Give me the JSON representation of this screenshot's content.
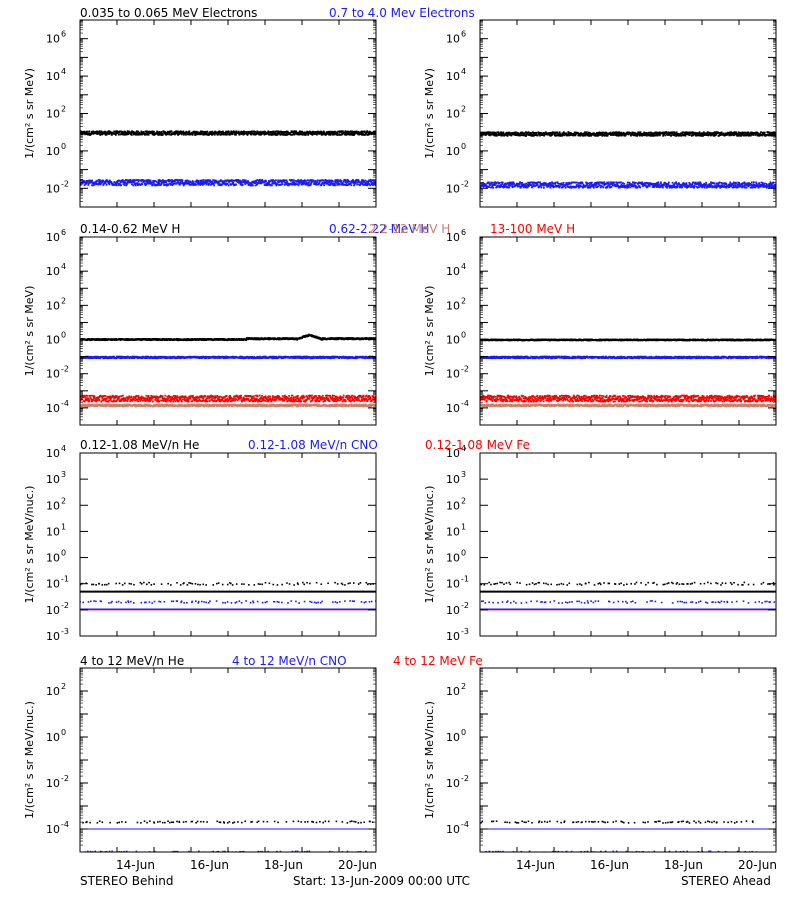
{
  "footer": {
    "left": "STEREO Behind",
    "center": "Start: 13-Jun-2009 00:00 UTC",
    "right": "STEREO Ahead"
  },
  "colors": {
    "black": "#000000",
    "blue": "#1a1aff",
    "tan": "#c8826e",
    "red": "#ff0000"
  },
  "chart_data": [
    {
      "type": "scatter",
      "row": 1,
      "legend": [
        {
          "text": "0.035 to 0.065 MeV Electrons",
          "color": "#000000"
        },
        {
          "text": "0.7 to 4.0 Mev Electrons",
          "color": "#1a1aff"
        }
      ],
      "ylabel": "1/(cm² s sr MeV)",
      "yscale": "log",
      "ylim_log10": [
        -3,
        7
      ],
      "yticks": [
        {
          "exp": -2,
          "label": "10",
          "sup": "-2"
        },
        {
          "exp": 0,
          "label": "10",
          "sup": "0"
        },
        {
          "exp": 2,
          "label": "10",
          "sup": "2"
        },
        {
          "exp": 4,
          "label": "10",
          "sup": "4"
        },
        {
          "exp": 6,
          "label": "10",
          "sup": "6"
        }
      ],
      "xticks": [
        "14-Jun",
        "16-Jun",
        "18-Jun",
        "20-Jun"
      ],
      "panels": [
        {
          "name": "STEREO Behind",
          "series": [
            {
              "name": "0.035 to 0.065 MeV Electrons",
              "color": "#000000",
              "level": 9,
              "spread": 0.1
            },
            {
              "name": "0.7 to 4.0 Mev Electrons",
              "color": "#1a1aff",
              "level": 0.02,
              "spread": 0.15
            }
          ]
        },
        {
          "name": "STEREO Ahead",
          "series": [
            {
              "name": "0.035 to 0.065 MeV Electrons",
              "color": "#000000",
              "level": 8,
              "spread": 0.1
            },
            {
              "name": "0.7 to 4.0 Mev Electrons",
              "color": "#1a1aff",
              "level": 0.015,
              "spread": 0.15
            }
          ]
        }
      ]
    },
    {
      "type": "scatter",
      "row": 2,
      "legend": [
        {
          "text": "0.14-0.62 MeV H",
          "color": "#000000"
        },
        {
          "text": "0.62-2.22 MeV H",
          "color": "#1a1aff"
        },
        {
          "text": "2.2-12 MeV H",
          "color": "#c8826e"
        },
        {
          "text": "13-100 MeV H",
          "color": "#ff0000"
        }
      ],
      "ylabel": "1/(cm² s sr MeV)",
      "yscale": "log",
      "ylim_log10": [
        -5,
        6
      ],
      "yticks": [
        {
          "exp": -4,
          "label": "10",
          "sup": "-4"
        },
        {
          "exp": -2,
          "label": "10",
          "sup": "-2"
        },
        {
          "exp": 0,
          "label": "10",
          "sup": "0"
        },
        {
          "exp": 2,
          "label": "10",
          "sup": "2"
        },
        {
          "exp": 4,
          "label": "10",
          "sup": "4"
        },
        {
          "exp": 6,
          "label": "10",
          "sup": "6"
        }
      ],
      "xticks": [
        "14-Jun",
        "16-Jun",
        "18-Jun",
        "20-Jun"
      ],
      "panels": [
        {
          "name": "STEREO Behind",
          "series": [
            {
              "name": "0.14-0.62 MeV H",
              "color": "#000000",
              "level": 1.0,
              "spread": 0.04,
              "bump": {
                "day": 6.2,
                "peak": 1.8
              }
            },
            {
              "name": "0.62-2.22 MeV H",
              "color": "#1a1aff",
              "level": 0.09,
              "spread": 0.05
            },
            {
              "name": "13-100 MeV H",
              "color": "#ff0000",
              "level": 0.00035,
              "spread": 0.18
            },
            {
              "name": "2.2-12 MeV H",
              "color": "#c8826e",
              "level": 0.00014,
              "spread": 0.06
            }
          ]
        },
        {
          "name": "STEREO Ahead",
          "series": [
            {
              "name": "0.14-0.62 MeV H",
              "color": "#000000",
              "level": 0.95,
              "spread": 0.03
            },
            {
              "name": "0.62-2.22 MeV H",
              "color": "#1a1aff",
              "level": 0.09,
              "spread": 0.05
            },
            {
              "name": "13-100 MeV H",
              "color": "#ff0000",
              "level": 0.00035,
              "spread": 0.18
            },
            {
              "name": "2.2-12 MeV H",
              "color": "#c8826e",
              "level": 0.00014,
              "spread": 0.06
            }
          ]
        }
      ]
    },
    {
      "type": "scatter",
      "row": 3,
      "legend": [
        {
          "text": "0.12-1.08 MeV/n He",
          "color": "#000000"
        },
        {
          "text": "0.12-1.08 MeV/n CNO",
          "color": "#1a1aff"
        },
        {
          "text": "0.12-1.08 MeV Fe",
          "color": "#ff0000"
        }
      ],
      "ylabel": "1/(cm² s sr MeV/nuc.)",
      "yscale": "log",
      "ylim_log10": [
        -3,
        4
      ],
      "yticks": [
        {
          "exp": -3,
          "label": "10",
          "sup": "-3"
        },
        {
          "exp": -2,
          "label": "10",
          "sup": "-2"
        },
        {
          "exp": -1,
          "label": "10",
          "sup": "-1"
        },
        {
          "exp": 0,
          "label": "10",
          "sup": "0"
        },
        {
          "exp": 1,
          "label": "10",
          "sup": "1"
        },
        {
          "exp": 2,
          "label": "10",
          "sup": "2"
        },
        {
          "exp": 3,
          "label": "10",
          "sup": "3"
        },
        {
          "exp": 4,
          "label": "10",
          "sup": "4"
        }
      ],
      "xticks": [
        "14-Jun",
        "16-Jun",
        "18-Jun",
        "20-Jun"
      ],
      "panels": [
        {
          "name": "STEREO Behind",
          "lines": [
            {
              "color": "#000000",
              "level": 0.05,
              "width": 2
            },
            {
              "color": "#1a1aff",
              "level": 0.0105,
              "width": 1.5
            },
            {
              "color": "#ff0000",
              "level": 0.01,
              "width": 1
            }
          ],
          "series": [
            {
              "name": "0.12-1.08 MeV/n He",
              "color": "#000000",
              "level": 0.1,
              "spread": 0.05,
              "sparse": true
            },
            {
              "name": "0.12-1.08 MeV/n CNO",
              "color": "#1a1aff",
              "level": 0.02,
              "spread": 0.04,
              "sparse": true
            }
          ]
        },
        {
          "name": "STEREO Ahead",
          "lines": [
            {
              "color": "#000000",
              "level": 0.05,
              "width": 2
            },
            {
              "color": "#1a1aff",
              "level": 0.0105,
              "width": 1.5
            },
            {
              "color": "#ff0000",
              "level": 0.01,
              "width": 1
            }
          ],
          "series": [
            {
              "name": "0.12-1.08 MeV/n He",
              "color": "#000000",
              "level": 0.1,
              "spread": 0.05,
              "sparse": true
            },
            {
              "name": "0.12-1.08 MeV/n CNO",
              "color": "#1a1aff",
              "level": 0.02,
              "spread": 0.04,
              "sparse": true
            }
          ]
        }
      ]
    },
    {
      "type": "scatter",
      "row": 4,
      "legend": [
        {
          "text": "4 to 12 MeV/n He",
          "color": "#000000"
        },
        {
          "text": "4 to 12 MeV/n CNO",
          "color": "#1a1aff"
        },
        {
          "text": "4 to 12 MeV Fe",
          "color": "#ff0000"
        }
      ],
      "ylabel": "1/(cm² s sr MeV/nuc.)",
      "yscale": "log",
      "ylim_log10": [
        -5,
        3
      ],
      "yticks": [
        {
          "exp": -4,
          "label": "10",
          "sup": "-4"
        },
        {
          "exp": -2,
          "label": "10",
          "sup": "-2"
        },
        {
          "exp": 0,
          "label": "10",
          "sup": "0"
        },
        {
          "exp": 2,
          "label": "10",
          "sup": "2"
        }
      ],
      "xticks": [
        "14-Jun",
        "16-Jun",
        "18-Jun",
        "20-Jun"
      ],
      "panels": [
        {
          "name": "STEREO Behind",
          "lines": [
            {
              "color": "#1a1aff",
              "level": 0.0001,
              "width": 1
            }
          ],
          "series": [
            {
              "name": "4 to 12 MeV/n He",
              "color": "#000000",
              "level": 0.0002,
              "spread": 0.04,
              "sparse": true
            },
            {
              "name": "4 to 12 MeV/n CNO",
              "color": "#1a1aff",
              "level": 1e-05,
              "spread": 0.03,
              "sparse": true
            }
          ]
        },
        {
          "name": "STEREO Ahead",
          "lines": [
            {
              "color": "#1a1aff",
              "level": 0.0001,
              "width": 1
            }
          ],
          "series": [
            {
              "name": "4 to 12 MeV/n He",
              "color": "#000000",
              "level": 0.0002,
              "spread": 0.04,
              "sparse": true
            },
            {
              "name": "4 to 12 MeV/n CNO",
              "color": "#1a1aff",
              "level": 1e-05,
              "spread": 0.03,
              "sparse": true
            }
          ]
        }
      ]
    }
  ]
}
